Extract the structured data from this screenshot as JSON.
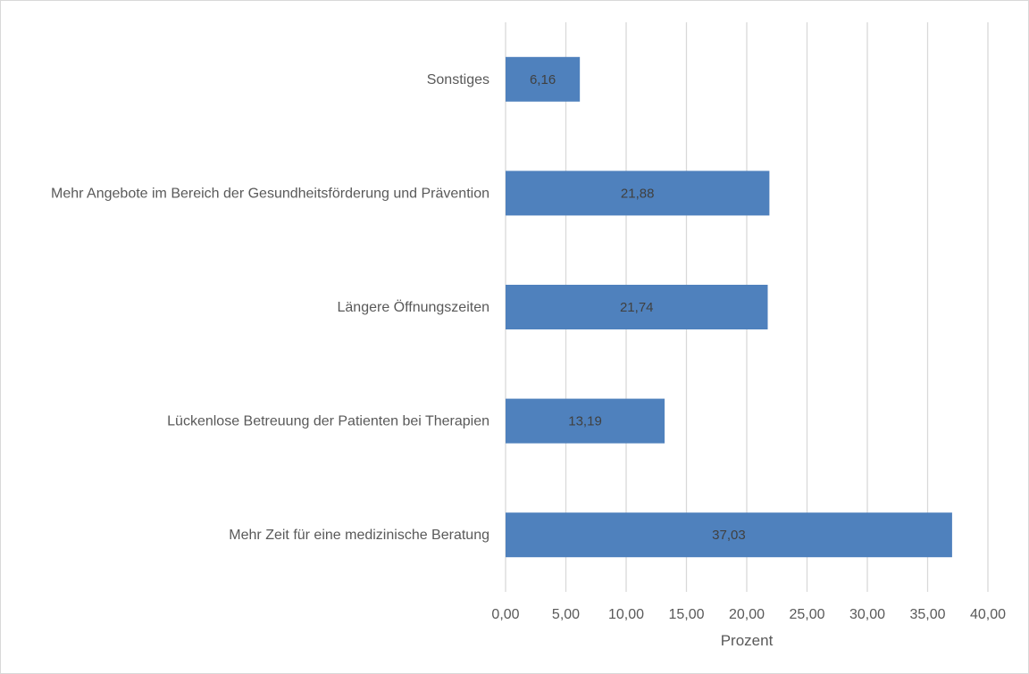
{
  "chart_data": {
    "type": "bar",
    "orientation": "horizontal",
    "categories": [
      "Sonstiges",
      "Mehr Angebote im Bereich der Gesundheitsförderung und Prävention",
      "Längere Öffnungszeiten",
      "Lückenlose Betreuung der Patienten bei Therapien",
      "Mehr Zeit für eine medizinische Beratung"
    ],
    "values": [
      6.16,
      21.88,
      21.74,
      13.19,
      37.03
    ],
    "data_labels": [
      "6,16",
      "21,88",
      "21,74",
      "13,19",
      "37,03"
    ],
    "xlabel": "Prozent",
    "xlim": [
      0,
      40
    ],
    "x_ticks": [
      0,
      5,
      10,
      15,
      20,
      25,
      30,
      35,
      40
    ],
    "x_tick_labels": [
      "0,00",
      "5,00",
      "10,00",
      "15,00",
      "20,00",
      "25,00",
      "30,00",
      "35,00",
      "40,00"
    ],
    "grid": true,
    "legend": "none",
    "bar_color": "#4f81bd"
  }
}
